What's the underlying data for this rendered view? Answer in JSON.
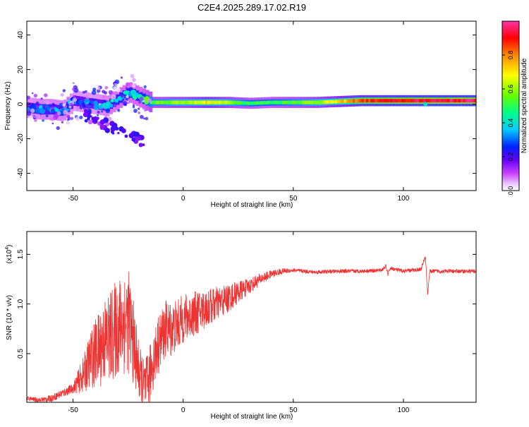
{
  "title": "C2E4.2025.289.17.02.R19",
  "chart_data": [
    {
      "type": "heatmap",
      "title": "C2E4.2025.289.17.02.R19",
      "xlabel": "Height of straight line (km)",
      "ylabel": "Frequency (Hz)",
      "xlim": [
        -71,
        133
      ],
      "ylim": [
        -50,
        48
      ],
      "xticks": [
        -50,
        0,
        50,
        100
      ],
      "xtick_labels": [
        "-50",
        "0",
        "50",
        "100"
      ],
      "yticks": [
        -40,
        -20,
        0,
        20,
        40
      ],
      "ytick_labels": [
        "-40",
        "-20",
        "0",
        "20",
        "40"
      ],
      "colorbar": {
        "label": "Normalized spectral amplitude",
        "range": [
          0,
          1
        ],
        "ticks": [
          0.0,
          0.2,
          0.4,
          0.6,
          0.8
        ],
        "tick_labels": [
          "0.0",
          "0.2",
          "0.4",
          "0.6",
          "0.8"
        ],
        "colors": [
          "#ffffff",
          "#cc44ff",
          "#6600ff",
          "#0022ff",
          "#00ccff",
          "#00ff88",
          "#66ff00",
          "#ffff00",
          "#ff8800",
          "#ff0000",
          "#ff33aa"
        ]
      },
      "ridge": {
        "x": [
          -71,
          -65,
          -60,
          -55,
          -50,
          -45,
          -40,
          -35,
          -30,
          -25,
          -20,
          -15,
          -10,
          -5,
          0,
          5,
          10,
          20,
          30,
          40,
          50,
          60,
          70,
          80,
          90,
          100,
          110,
          120,
          133
        ],
        "y": [
          -2,
          -3,
          -3,
          -4,
          2,
          1,
          0,
          -1,
          3,
          7,
          4,
          1,
          1,
          1,
          1,
          1,
          1,
          1,
          0.5,
          1,
          1,
          1,
          1.5,
          2,
          2,
          2,
          2,
          2,
          2
        ],
        "amplitude": [
          0.3,
          0.35,
          0.35,
          0.35,
          0.3,
          0.3,
          0.3,
          0.35,
          0.4,
          0.4,
          0.4,
          0.55,
          0.55,
          0.6,
          0.6,
          0.65,
          0.7,
          0.6,
          0.5,
          0.5,
          0.55,
          0.6,
          0.7,
          0.85,
          0.9,
          0.9,
          0.95,
          0.95,
          0.95
        ]
      },
      "scatter_branch": {
        "x": [
          -45,
          -40,
          -35,
          -30,
          -25,
          -20,
          -18
        ],
        "y": [
          -6,
          -10,
          -12,
          -15,
          -18,
          -20,
          -23
        ]
      }
    },
    {
      "type": "line",
      "xlabel": "Height of straight line (km)",
      "ylabel": "SNR (10 * v/v)",
      "multiplier_label": "(x10",
      "multiplier_exp": "4",
      "multiplier_close": ")",
      "xlim": [
        -71,
        133
      ],
      "ylim": [
        0.01,
        1.73
      ],
      "xticks": [
        -50,
        0,
        50,
        100
      ],
      "xtick_labels": [
        "-50",
        "0",
        "50",
        "100"
      ],
      "yticks": [
        0.5,
        1.0,
        1.5
      ],
      "ytick_labels": [
        "0.5",
        "1.0",
        "1.5"
      ],
      "color": "#ee3333",
      "envelope": {
        "x": [
          -71,
          -65,
          -60,
          -55,
          -50,
          -45,
          -42,
          -38,
          -35,
          -32,
          -28,
          -25,
          -22,
          -20,
          -18,
          -16,
          -14,
          -12,
          -10,
          -8,
          -5,
          -2,
          0,
          5,
          10,
          15,
          20,
          25,
          30,
          35,
          40,
          45,
          50,
          60,
          70,
          80,
          90,
          92,
          93,
          94,
          100,
          108,
          110,
          111,
          112,
          120,
          133
        ],
        "y": [
          0.05,
          0.03,
          0.05,
          0.1,
          0.15,
          0.3,
          0.45,
          0.55,
          0.65,
          0.7,
          0.8,
          0.85,
          0.55,
          0.3,
          0.15,
          0.2,
          0.4,
          0.55,
          0.65,
          0.75,
          0.75,
          0.8,
          0.85,
          0.9,
          0.95,
          1.0,
          1.05,
          1.12,
          1.18,
          1.25,
          1.3,
          1.33,
          1.34,
          1.32,
          1.33,
          1.33,
          1.34,
          1.38,
          1.3,
          1.36,
          1.33,
          1.35,
          1.48,
          1.1,
          1.33,
          1.33,
          1.33
        ]
      },
      "noise_amplitude": {
        "x": [
          -71,
          -50,
          -45,
          -40,
          -35,
          -30,
          -25,
          -20,
          -15,
          -10,
          -5,
          0,
          10,
          20,
          30,
          40,
          50,
          133
        ],
        "y": [
          0.02,
          0.05,
          0.2,
          0.35,
          0.45,
          0.5,
          0.55,
          0.3,
          0.3,
          0.3,
          0.28,
          0.25,
          0.2,
          0.15,
          0.08,
          0.04,
          0.02,
          0.02
        ]
      }
    }
  ]
}
